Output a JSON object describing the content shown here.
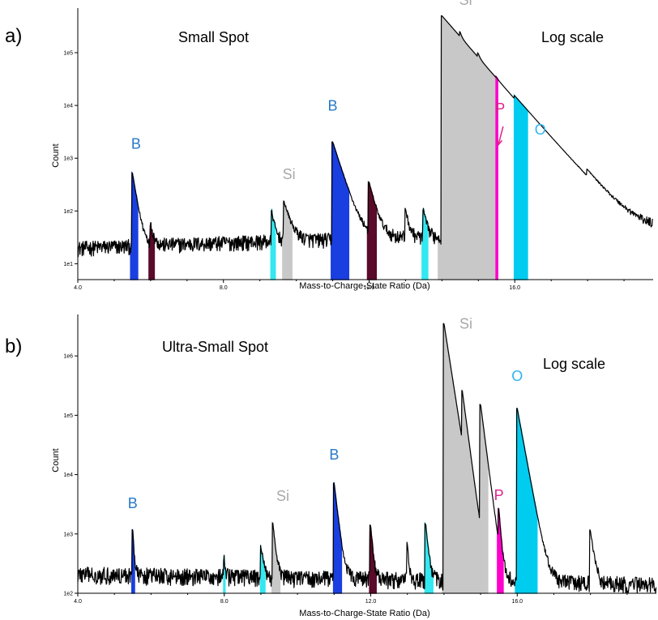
{
  "chart_data": [
    {
      "type": "line",
      "panel_label": "a)",
      "title": "Small Spot",
      "scale_note": "Log scale",
      "xlabel": "Mass-to-Charge-State Ratio (Da)",
      "ylabel": "Count",
      "y_scale": "log",
      "xlim": [
        4.0,
        19.8
      ],
      "ylim": [
        5,
        700000
      ],
      "x_ticks": [
        4.0,
        8.0,
        12.0,
        16.0
      ],
      "x_tick_labels": [
        "4.0",
        "8.0",
        "12.0",
        "16.0"
      ],
      "y_ticks": [
        10,
        100,
        1000,
        10000,
        100000
      ],
      "y_tick_labels": [
        "1e1",
        "1e2",
        "1e3",
        "1e4",
        "1e5"
      ],
      "background": {
        "start": 20,
        "end": 40
      },
      "peaks": [
        {
          "species": "B",
          "x": 5.5,
          "height": 500,
          "decay": 0.1,
          "fill": [
            5.45,
            5.65
          ],
          "color": "#1a3fe0"
        },
        {
          "species": "B",
          "x": 6.0,
          "height": 30,
          "decay": 0.08,
          "fill": [
            5.95,
            6.1
          ],
          "color": "#5a0a2a"
        },
        {
          "species": "Si",
          "x": 9.33,
          "height": 70,
          "decay": 0.08,
          "fill": [
            9.3,
            9.43
          ],
          "color": "#33e8f0"
        },
        {
          "species": "Si",
          "x": 9.67,
          "height": 120,
          "decay": 0.15,
          "fill": [
            9.62,
            9.88
          ],
          "color": "#c8c8c8"
        },
        {
          "species": "B",
          "x": 11.0,
          "height": 2000,
          "decay": 0.2,
          "fill": [
            10.95,
            11.45
          ],
          "color": "#1a3fe0"
        },
        {
          "species": "B",
          "x": 12.0,
          "height": 300,
          "decay": 0.15,
          "fill": [
            11.95,
            12.2
          ],
          "color": "#5a0a2a"
        },
        {
          "species": "",
          "x": 13.0,
          "height": 80,
          "decay": 0.08,
          "fill": null,
          "color": ""
        },
        {
          "species": "Si",
          "x": 13.5,
          "height": 70,
          "decay": 0.08,
          "fill": [
            13.45,
            13.62
          ],
          "color": "#33e8f0"
        },
        {
          "species": "Si",
          "x": 14.0,
          "height": 500000,
          "decay": 0.55,
          "fill": [
            13.9,
            15.5
          ],
          "color": "#c8c8c8"
        },
        {
          "species": "Si",
          "x": 14.5,
          "height": 45000,
          "decay": 0.05,
          "fill": null,
          "color": ""
        },
        {
          "species": "Si",
          "x": 15.0,
          "height": 15000,
          "decay": 0.05,
          "fill": null,
          "color": ""
        },
        {
          "species": "P",
          "x": 15.5,
          "height": 1500,
          "decay": 0.05,
          "fill": [
            15.48,
            15.54
          ],
          "color": "#ff00cc"
        },
        {
          "species": "O",
          "x": 16.0,
          "height": 2000,
          "decay": 0.6,
          "fill": [
            15.98,
            16.35
          ],
          "color": "#00ccf0"
        },
        {
          "species": "",
          "x": 18.0,
          "height": 150,
          "decay": 0.4,
          "fill": null,
          "color": ""
        }
      ],
      "annotations": [
        {
          "text": "B",
          "x": 5.6,
          "y": 1500,
          "color": "#2878c8"
        },
        {
          "text": "Si",
          "x": 9.8,
          "y": 400,
          "color": "#a8a8a8"
        },
        {
          "text": "B",
          "x": 11.0,
          "y": 8000,
          "color": "#2878c8"
        },
        {
          "text": "Si",
          "x": 14.65,
          "y": 800000,
          "color": "#a8a8a8"
        },
        {
          "text": "P",
          "x": 15.6,
          "y": 7000,
          "color": "#e0208c"
        },
        {
          "text": "O",
          "x": 16.7,
          "y": 2800,
          "color": "#30b4f0"
        }
      ],
      "arrow": {
        "from_x": 15.68,
        "from_y": 4000,
        "to_x": 15.55,
        "to_y": 1800,
        "color": "#e0208c"
      }
    },
    {
      "type": "line",
      "panel_label": "b)",
      "title": "Ultra-Small Spot",
      "scale_note": "Log scale",
      "xlabel": "Mass-to-Charge-State Ratio (Da)",
      "ylabel": "Count",
      "y_scale": "log",
      "xlim": [
        4.0,
        19.8
      ],
      "ylim": [
        100,
        5000000
      ],
      "x_ticks": [
        4.0,
        8.0,
        12.0,
        16.0
      ],
      "x_tick_labels": [
        "4.0",
        "8.0",
        "12.0",
        "16.0"
      ],
      "y_ticks": [
        100,
        1000,
        10000,
        100000,
        1000000
      ],
      "y_tick_labels": [
        "1e2",
        "1e3",
        "1e4",
        "1e5",
        "1e6"
      ],
      "background": {
        "start": 210,
        "end": 140
      },
      "peaks": [
        {
          "species": "B",
          "x": 5.5,
          "height": 1000,
          "decay": 0.03,
          "fill": [
            5.47,
            5.55
          ],
          "color": "#1a3fe0"
        },
        {
          "species": "",
          "x": 8.0,
          "height": 190,
          "decay": 0.03,
          "fill": [
            7.98,
            8.03
          ],
          "color": "#33e8f0"
        },
        {
          "species": "Si",
          "x": 9.0,
          "height": 450,
          "decay": 0.06,
          "fill": [
            8.98,
            9.12
          ],
          "color": "#33e8f0"
        },
        {
          "species": "Si",
          "x": 9.33,
          "height": 1300,
          "decay": 0.06,
          "fill": [
            9.3,
            9.52
          ],
          "color": "#c8c8c8"
        },
        {
          "species": "B",
          "x": 11.0,
          "height": 7000,
          "decay": 0.08,
          "fill": [
            10.98,
            11.2
          ],
          "color": "#1a3fe0"
        },
        {
          "species": "B",
          "x": 12.0,
          "height": 1200,
          "decay": 0.05,
          "fill": [
            11.96,
            12.15
          ],
          "color": "#5a0a2a"
        },
        {
          "species": "",
          "x": 13.0,
          "height": 500,
          "decay": 0.04,
          "fill": null,
          "color": ""
        },
        {
          "species": "Si",
          "x": 13.5,
          "height": 1300,
          "decay": 0.06,
          "fill": [
            13.47,
            13.7
          ],
          "color": "#33e8f0"
        },
        {
          "species": "Si",
          "x": 14.0,
          "height": 3500000,
          "decay": 0.11,
          "fill": [
            13.95,
            15.2
          ],
          "color": "#c8c8c8"
        },
        {
          "species": "Si",
          "x": 14.5,
          "height": 220000,
          "decay": 0.09,
          "fill": null,
          "color": ""
        },
        {
          "species": "Si",
          "x": 15.0,
          "height": 150000,
          "decay": 0.09,
          "fill": null,
          "color": ""
        },
        {
          "species": "P",
          "x": 15.5,
          "height": 1900,
          "decay": 0.04,
          "fill": [
            15.45,
            15.62
          ],
          "color": "#ff00cc"
        },
        {
          "species": "O",
          "x": 16.0,
          "height": 130000,
          "decay": 0.13,
          "fill": [
            15.95,
            16.55
          ],
          "color": "#00ccf0"
        },
        {
          "species": "",
          "x": 18.0,
          "height": 1000,
          "decay": 0.08,
          "fill": null,
          "color": ""
        }
      ],
      "annotations": [
        {
          "text": "B",
          "x": 5.5,
          "y": 2700,
          "color": "#2878c8"
        },
        {
          "text": "Si",
          "x": 9.6,
          "y": 3600,
          "color": "#a8a8a8"
        },
        {
          "text": "B",
          "x": 11.0,
          "y": 18000,
          "color": "#2878c8"
        },
        {
          "text": "Si",
          "x": 14.6,
          "y": 2900000,
          "color": "#a8a8a8"
        },
        {
          "text": "P",
          "x": 15.5,
          "y": 3700,
          "color": "#e0208c"
        },
        {
          "text": "O",
          "x": 16.0,
          "y": 380000,
          "color": "#30b4f0"
        }
      ]
    }
  ]
}
